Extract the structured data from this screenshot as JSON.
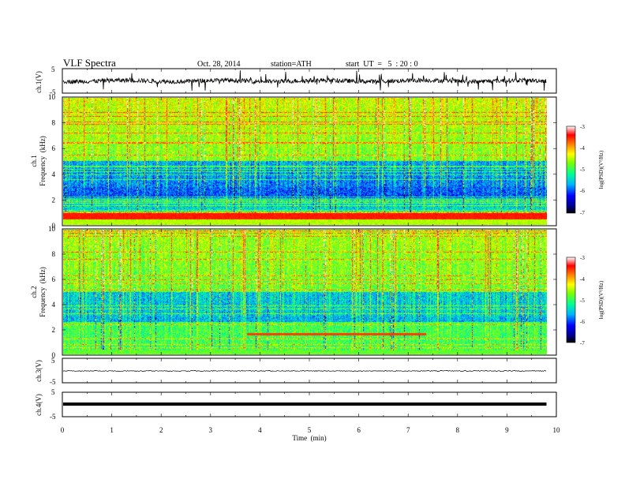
{
  "header": {
    "title": "VLF  Spectra",
    "date": "Oct. 28, 2014",
    "station": "station=ATH",
    "start": "start  UT  =   5  : 20 : 0"
  },
  "chart_data": [
    {
      "type": "line",
      "panel": "ch1-waveform",
      "ylabel": "ch.1(V)",
      "yticks": [
        "5",
        "-5"
      ],
      "ylim": [
        -5,
        5
      ],
      "x_range_min": [
        0,
        9.8
      ],
      "baseline": 0,
      "style": "dense noisy waveform with impulsive spikes"
    },
    {
      "type": "heatmap",
      "panel": "ch1-spectrogram",
      "ylabel_channel": "ch.1",
      "ylabel": "Frequency  (kHz)",
      "yticks": [
        "0",
        "2",
        "4",
        "6",
        "8",
        "10"
      ],
      "ylim": [
        0,
        10
      ],
      "colorbar": {
        "label": "log(PSD)(V²/Hz)",
        "ticks": [
          "-3",
          "-4",
          "-5",
          "-6",
          "-7"
        ],
        "range": [
          -7,
          -3
        ]
      }
    },
    {
      "type": "heatmap",
      "panel": "ch2-spectrogram",
      "ylabel_channel": "ch.2",
      "ylabel": "Frequency  (kHz)",
      "yticks": [
        "0",
        "2",
        "4",
        "6",
        "8",
        "10"
      ],
      "ylim": [
        0,
        10
      ],
      "colorbar": {
        "label": "log(PSD)(V²/Hz)",
        "ticks": [
          "-3",
          "-4",
          "-5",
          "-6",
          "-7"
        ],
        "range": [
          -7,
          -3
        ]
      }
    },
    {
      "type": "line",
      "panel": "ch3-waveform",
      "ylabel": "ch.3(V)",
      "yticks": [
        "5",
        "-5"
      ],
      "ylim": [
        -5,
        5
      ],
      "baseline": 0,
      "style": "thin near-flat trace"
    },
    {
      "type": "line",
      "panel": "ch4-waveform",
      "ylabel": "ch.4(V)",
      "yticks": [
        "5",
        "-5"
      ],
      "ylim": [
        -5,
        5
      ],
      "baseline": 0,
      "style": "thick flat band"
    }
  ],
  "xaxis": {
    "label": "Time  (min)",
    "ticks": [
      "0",
      "1",
      "2",
      "3",
      "4",
      "5",
      "6",
      "7",
      "8",
      "9",
      "10"
    ],
    "xlim": [
      0,
      10
    ]
  }
}
